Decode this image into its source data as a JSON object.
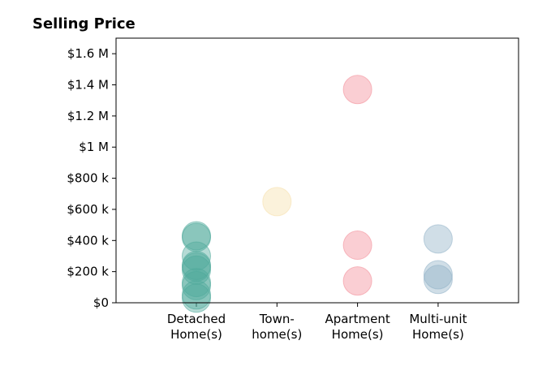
{
  "chart_data": {
    "type": "scatter",
    "title": "Selling Price",
    "xlabel": "",
    "ylabel": "",
    "categories": [
      [
        "Detached",
        "Home(s)"
      ],
      [
        "Town-",
        "home(s)"
      ],
      [
        "Apartment",
        "Home(s)"
      ],
      [
        "Multi-unit",
        "Home(s)"
      ]
    ],
    "y_ticks": [
      {
        "value": 0,
        "label": "$0"
      },
      {
        "value": 200000,
        "label": "$200 k"
      },
      {
        "value": 400000,
        "label": "$400 k"
      },
      {
        "value": 600000,
        "label": "$600 k"
      },
      {
        "value": 800000,
        "label": "$800 k"
      },
      {
        "value": 1000000,
        "label": "$1 M"
      },
      {
        "value": 1200000,
        "label": "$1.2 M"
      },
      {
        "value": 1400000,
        "label": "$1.4 M"
      },
      {
        "value": 1600000,
        "label": "$1.6 M"
      }
    ],
    "ylim": [
      0,
      1700000
    ],
    "grid": false,
    "legend": "none",
    "series": [
      {
        "category_index": 0,
        "color": "#4fa99a",
        "values": [
          430000,
          420000,
          300000,
          240000,
          230000,
          210000,
          130000,
          110000,
          50000,
          30000
        ]
      },
      {
        "category_index": 1,
        "color": "#f5dfa9",
        "values": [
          650000
        ]
      },
      {
        "category_index": 2,
        "color": "#f28b95",
        "values": [
          1370000,
          370000,
          140000
        ]
      },
      {
        "category_index": 3,
        "color": "#8fb1c6",
        "values": [
          410000,
          180000,
          150000
        ]
      }
    ]
  }
}
